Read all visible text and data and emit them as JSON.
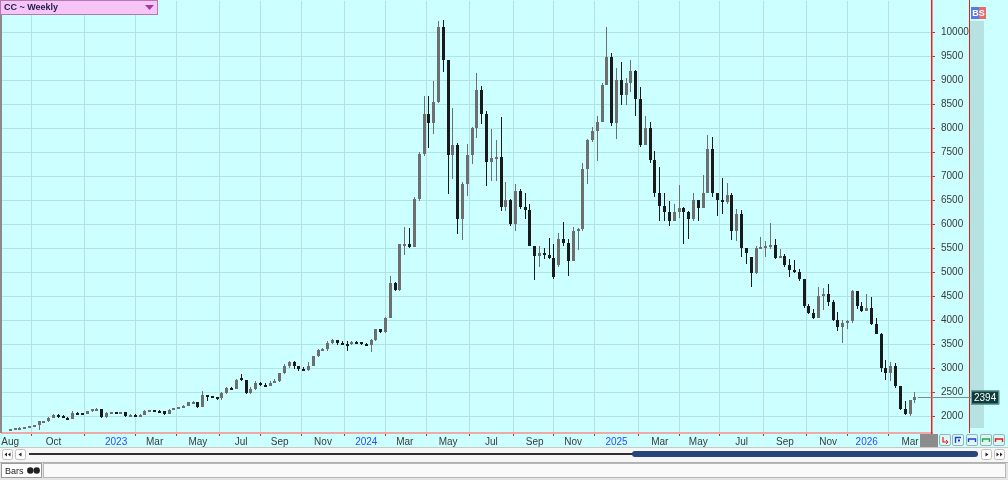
{
  "chart_data": {
    "type": "candlestick",
    "title": "CC ~ Weekly",
    "x": [
      "2022-08-05",
      "2022-08-12",
      "2022-08-19",
      "2022-08-26",
      "2022-09-02",
      "2022-09-09",
      "2022-09-16",
      "2022-09-23",
      "2022-09-30",
      "2022-10-07",
      "2022-10-14",
      "2022-10-21",
      "2022-10-28",
      "2022-11-04",
      "2022-11-11",
      "2022-11-18",
      "2022-11-25",
      "2022-12-02",
      "2022-12-09",
      "2022-12-16",
      "2022-12-23",
      "2022-12-30",
      "2023-01-06",
      "2023-01-13",
      "2023-01-20",
      "2023-01-27",
      "2023-02-03",
      "2023-02-10",
      "2023-02-17",
      "2023-02-24",
      "2023-03-03",
      "2023-03-10",
      "2023-03-17",
      "2023-03-24",
      "2023-03-31",
      "2023-04-07",
      "2023-04-14",
      "2023-04-21",
      "2023-04-28",
      "2023-05-05",
      "2023-05-12",
      "2023-05-19",
      "2023-05-26",
      "2023-06-02",
      "2023-06-09",
      "2023-06-16",
      "2023-06-23",
      "2023-06-30",
      "2023-07-07",
      "2023-07-14",
      "2023-07-21",
      "2023-07-28",
      "2023-08-04",
      "2023-08-11",
      "2023-08-18",
      "2023-08-25",
      "2023-09-01",
      "2023-09-08",
      "2023-09-15",
      "2023-09-22",
      "2023-09-29",
      "2023-10-06",
      "2023-10-13",
      "2023-10-20",
      "2023-10-27",
      "2023-11-03",
      "2023-11-10",
      "2023-11-17",
      "2023-11-24",
      "2023-12-01",
      "2023-12-08",
      "2023-12-15",
      "2023-12-22",
      "2023-12-29",
      "2024-01-05",
      "2024-01-12",
      "2024-01-19",
      "2024-01-26",
      "2024-02-02",
      "2024-02-09",
      "2024-02-16",
      "2024-02-23",
      "2024-03-01",
      "2024-03-08",
      "2024-03-15",
      "2024-03-22",
      "2024-03-29",
      "2024-04-05",
      "2024-04-12",
      "2024-04-19",
      "2024-04-26",
      "2024-05-03",
      "2024-05-10",
      "2024-05-17",
      "2024-05-24",
      "2024-05-31",
      "2024-06-07",
      "2024-06-14",
      "2024-06-21",
      "2024-06-28",
      "2024-07-05",
      "2024-07-12",
      "2024-07-19",
      "2024-07-26",
      "2024-08-02",
      "2024-08-09",
      "2024-08-16",
      "2024-08-23",
      "2024-08-30",
      "2024-09-06",
      "2024-09-13",
      "2024-09-20",
      "2024-09-27",
      "2024-10-04",
      "2024-10-11",
      "2024-10-18",
      "2024-10-25",
      "2024-11-01",
      "2024-11-08",
      "2024-11-15",
      "2024-11-22",
      "2024-11-29",
      "2024-12-06",
      "2024-12-13",
      "2024-12-20",
      "2024-12-27",
      "2025-01-03",
      "2025-01-10",
      "2025-01-17",
      "2025-01-24",
      "2025-01-31",
      "2025-02-07",
      "2025-02-14",
      "2025-02-21",
      "2025-02-28",
      "2025-03-07",
      "2025-03-14",
      "2025-03-21",
      "2025-03-28",
      "2025-04-04",
      "2025-04-11",
      "2025-04-18",
      "2025-04-25",
      "2025-05-02",
      "2025-05-09",
      "2025-05-16",
      "2025-05-23",
      "2025-05-30",
      "2025-06-06",
      "2025-06-13",
      "2025-06-20",
      "2025-06-27",
      "2025-07-04",
      "2025-07-11",
      "2025-07-18",
      "2025-07-25",
      "2025-08-01",
      "2025-08-08",
      "2025-08-15",
      "2025-08-22",
      "2025-08-29",
      "2025-09-05",
      "2025-09-12",
      "2025-09-19",
      "2025-09-26",
      "2025-10-03",
      "2025-10-10",
      "2025-10-17",
      "2025-10-24",
      "2025-10-31",
      "2025-11-07",
      "2025-11-14",
      "2025-11-21",
      "2025-11-28",
      "2025-12-05",
      "2025-12-12",
      "2025-12-19",
      "2025-12-26",
      "2026-01-02",
      "2026-01-09",
      "2026-01-16",
      "2026-01-23",
      "2026-01-30",
      "2026-02-06",
      "2026-02-13",
      "2026-02-20",
      "2026-02-27",
      "2026-03-06",
      "2026-03-13"
    ],
    "ohlc": [
      [
        1715,
        1740,
        1705,
        1725
      ],
      [
        1725,
        1755,
        1720,
        1745
      ],
      [
        1745,
        1765,
        1735,
        1755
      ],
      [
        1755,
        1775,
        1745,
        1765
      ],
      [
        1765,
        1800,
        1760,
        1790
      ],
      [
        1790,
        1825,
        1780,
        1815
      ],
      [
        1815,
        1905,
        1720,
        1890
      ],
      [
        1890,
        1910,
        1870,
        1895
      ],
      [
        1895,
        1975,
        1885,
        1960
      ],
      [
        1960,
        2040,
        1955,
        2030
      ],
      [
        2030,
        2040,
        1960,
        2010
      ],
      [
        2010,
        2015,
        1960,
        1970
      ],
      [
        1970,
        1980,
        1930,
        1940
      ],
      [
        1940,
        2100,
        1935,
        2070
      ],
      [
        2070,
        2085,
        2040,
        2060
      ],
      [
        2060,
        2075,
        2030,
        2045
      ],
      [
        2045,
        2110,
        2040,
        2100
      ],
      [
        2100,
        2160,
        2095,
        2150
      ],
      [
        2150,
        2170,
        2120,
        2155
      ],
      [
        2155,
        2160,
        1955,
        1975
      ],
      [
        1975,
        2085,
        1965,
        2070
      ],
      [
        2070,
        2090,
        2060,
        2080
      ],
      [
        2080,
        2085,
        2055,
        2070
      ],
      [
        2070,
        2095,
        2060,
        2085
      ],
      [
        2085,
        2090,
        1985,
        1995
      ],
      [
        1995,
        2050,
        1990,
        2035
      ],
      [
        2035,
        2045,
        1990,
        2015
      ],
      [
        2015,
        2045,
        2010,
        2035
      ],
      [
        2035,
        2135,
        2030,
        2115
      ],
      [
        2115,
        2135,
        2100,
        2120
      ],
      [
        2120,
        2130,
        2095,
        2115
      ],
      [
        2115,
        2125,
        2080,
        2105
      ],
      [
        2105,
        2110,
        2020,
        2050
      ],
      [
        2050,
        2145,
        2045,
        2135
      ],
      [
        2135,
        2175,
        2130,
        2165
      ],
      [
        2165,
        2200,
        2150,
        2190
      ],
      [
        2190,
        2225,
        2180,
        2215
      ],
      [
        2215,
        2305,
        2210,
        2290
      ],
      [
        2290,
        2310,
        2260,
        2295
      ],
      [
        2295,
        2300,
        2170,
        2200
      ],
      [
        2200,
        2515,
        2195,
        2440
      ],
      [
        2440,
        2450,
        2320,
        2420
      ],
      [
        2420,
        2430,
        2370,
        2390
      ],
      [
        2390,
        2400,
        2340,
        2370
      ],
      [
        2370,
        2510,
        2340,
        2480
      ],
      [
        2480,
        2600,
        2470,
        2590
      ],
      [
        2590,
        2610,
        2540,
        2560
      ],
      [
        2560,
        2770,
        2560,
        2760
      ],
      [
        2800,
        2880,
        2730,
        2760
      ],
      [
        2760,
        2760,
        2460,
        2480
      ],
      [
        2480,
        2600,
        2470,
        2560
      ],
      [
        2560,
        2730,
        2550,
        2700
      ],
      [
        2700,
        2720,
        2620,
        2650
      ],
      [
        2650,
        2700,
        2610,
        2630
      ],
      [
        2630,
        2740,
        2620,
        2700
      ],
      [
        2700,
        2770,
        2690,
        2730
      ],
      [
        2730,
        2910,
        2720,
        2900
      ],
      [
        2900,
        3080,
        2880,
        3050
      ],
      [
        3050,
        3150,
        3010,
        3120
      ],
      [
        3120,
        3140,
        2980,
        3050
      ],
      [
        3050,
        3050,
        2940,
        2980
      ],
      [
        2980,
        3020,
        2940,
        2960
      ],
      [
        2960,
        3120,
        2950,
        3050
      ],
      [
        3050,
        3260,
        3040,
        3250
      ],
      [
        3250,
        3400,
        3240,
        3380
      ],
      [
        3380,
        3430,
        3360,
        3400
      ],
      [
        3400,
        3560,
        3360,
        3530
      ],
      [
        3530,
        3610,
        3500,
        3580
      ],
      [
        3580,
        3590,
        3480,
        3530
      ],
      [
        3530,
        3560,
        3490,
        3510
      ],
      [
        3510,
        3560,
        3350,
        3500
      ],
      [
        3500,
        3570,
        3490,
        3540
      ],
      [
        3540,
        3570,
        3500,
        3520
      ],
      [
        3540,
        3550,
        3480,
        3500
      ],
      [
        3500,
        3520,
        3460,
        3490
      ],
      [
        3490,
        3600,
        3330,
        3580
      ],
      [
        3580,
        3815,
        3570,
        3810
      ],
      [
        3810,
        3820,
        3740,
        3750
      ],
      [
        3750,
        4060,
        3740,
        4050
      ],
      [
        4050,
        4930,
        4040,
        4770
      ],
      [
        4770,
        4790,
        4610,
        4620
      ],
      [
        4620,
        5590,
        4610,
        5580
      ],
      [
        5580,
        5940,
        5360,
        5590
      ],
      [
        5590,
        5920,
        5500,
        5520
      ],
      [
        5520,
        6560,
        5520,
        6520
      ],
      [
        6520,
        7500,
        6480,
        7470
      ],
      [
        7470,
        8670,
        7420,
        8290
      ],
      [
        8290,
        8670,
        7580,
        8100
      ],
      [
        8100,
        8990,
        7870,
        8540
      ],
      [
        8540,
        10235,
        8535,
        10100
      ],
      [
        10100,
        10250,
        9180,
        9420
      ],
      [
        9420,
        9420,
        6630,
        7450
      ],
      [
        7450,
        8430,
        6940,
        7650
      ],
      [
        7650,
        7700,
        5790,
        6100
      ],
      [
        6100,
        6870,
        5670,
        6830
      ],
      [
        6830,
        7680,
        6590,
        7450
      ],
      [
        7450,
        8015,
        7250,
        8000
      ],
      [
        8000,
        9140,
        7800,
        8800
      ],
      [
        8800,
        8880,
        8080,
        8300
      ],
      [
        8300,
        8360,
        6800,
        7300
      ],
      [
        7300,
        7980,
        6900,
        7380
      ],
      [
        7380,
        7750,
        6900,
        7400
      ],
      [
        7400,
        8240,
        6280,
        6350
      ],
      [
        6350,
        6870,
        6280,
        6500
      ],
      [
        6500,
        6520,
        5970,
        6000
      ],
      [
        6000,
        6830,
        5860,
        6700
      ],
      [
        6700,
        6730,
        6310,
        6350
      ],
      [
        6350,
        6640,
        6110,
        6300
      ],
      [
        6300,
        6420,
        5550,
        5550
      ],
      [
        5550,
        5550,
        4840,
        5330
      ],
      [
        5330,
        5550,
        5110,
        5400
      ],
      [
        5400,
        5500,
        5270,
        5350
      ],
      [
        5350,
        5720,
        5270,
        5300
      ],
      [
        5300,
        5590,
        4860,
        4900
      ],
      [
        5150,
        5810,
        5100,
        5700
      ],
      [
        5700,
        6050,
        5550,
        5600
      ],
      [
        5600,
        5690,
        4925,
        5230
      ],
      [
        5230,
        5950,
        5230,
        5850
      ],
      [
        5850,
        5930,
        5460,
        5900
      ],
      [
        5900,
        7265,
        5860,
        7150
      ],
      [
        7150,
        7770,
        6830,
        7750
      ],
      [
        7750,
        8015,
        7720,
        7950
      ],
      [
        7950,
        8260,
        7320,
        8130
      ],
      [
        8130,
        8950,
        8130,
        8900
      ],
      [
        8900,
        10100,
        8900,
        9490
      ],
      [
        9490,
        9560,
        8050,
        8100
      ],
      [
        8100,
        9260,
        7785,
        9000
      ],
      [
        9000,
        9370,
        8480,
        8700
      ],
      [
        8700,
        9055,
        8490,
        8950
      ],
      [
        8950,
        9420,
        8760,
        9200
      ],
      [
        9200,
        9210,
        8260,
        8600
      ],
      [
        8600,
        8860,
        7600,
        7650
      ],
      [
        7650,
        8260,
        7650,
        8000
      ],
      [
        8000,
        8120,
        7285,
        7340
      ],
      [
        7340,
        7530,
        6570,
        6660
      ],
      [
        6660,
        7195,
        6060,
        6380
      ],
      [
        6380,
        6660,
        6060,
        6250
      ],
      [
        6250,
        6490,
        5970,
        6060
      ],
      [
        6060,
        6430,
        6060,
        6250
      ],
      [
        6250,
        6820,
        6130,
        6330
      ],
      [
        6330,
        6350,
        5590,
        6250
      ],
      [
        6250,
        6280,
        5690,
        6110
      ],
      [
        6110,
        6660,
        6060,
        6500
      ],
      [
        6500,
        6500,
        6060,
        6340
      ],
      [
        6340,
        7030,
        6335,
        6660
      ],
      [
        6660,
        7860,
        6660,
        7570
      ],
      [
        7570,
        7820,
        6560,
        6650
      ],
      [
        6650,
        6660,
        6175,
        6500
      ],
      [
        6500,
        6960,
        6210,
        6470
      ],
      [
        6470,
        6850,
        6420,
        6600
      ],
      [
        6600,
        6660,
        5670,
        5850
      ],
      [
        5850,
        6310,
        5650,
        6210
      ],
      [
        6210,
        6290,
        5310,
        5500
      ],
      [
        5500,
        5500,
        5170,
        5400
      ],
      [
        5320,
        5320,
        4700,
        4980
      ],
      [
        4980,
        5540,
        4970,
        5500
      ],
      [
        5500,
        5740,
        5500,
        5520
      ],
      [
        5520,
        5650,
        5310,
        5550
      ],
      [
        5550,
        6015,
        5480,
        5560
      ],
      [
        5560,
        5690,
        5270,
        5300
      ],
      [
        5300,
        5480,
        5300,
        5330
      ],
      [
        5330,
        5370,
        5100,
        5150
      ],
      [
        5150,
        5270,
        4890,
        5050
      ],
      [
        5050,
        5250,
        4990,
        5000
      ],
      [
        5000,
        5060,
        4820,
        4850
      ],
      [
        4850,
        4855,
        4250,
        4300
      ],
      [
        4300,
        4330,
        4125,
        4150
      ],
      [
        4150,
        4230,
        4020,
        4050
      ],
      [
        4050,
        4690,
        4040,
        4500
      ],
      [
        4500,
        4680,
        4210,
        4550
      ],
      [
        4550,
        4760,
        4300,
        4380
      ],
      [
        4380,
        4420,
        3990,
        4000
      ],
      [
        4000,
        4180,
        3765,
        3850
      ],
      [
        3850,
        4000,
        3515,
        3950
      ],
      [
        3950,
        4000,
        3810,
        3980
      ],
      [
        3980,
        4625,
        3950,
        4600
      ],
      [
        4600,
        4600,
        4230,
        4300
      ],
      [
        4300,
        4370,
        4180,
        4200
      ],
      [
        4200,
        4555,
        4200,
        4250
      ],
      [
        4250,
        4490,
        3900,
        3920
      ],
      [
        3920,
        4040,
        3720,
        3720
      ],
      [
        3720,
        3740,
        2930,
        3000
      ],
      [
        3000,
        3170,
        2750,
        2900
      ],
      [
        2900,
        3120,
        2740,
        3050
      ],
      [
        3050,
        3100,
        2585,
        2620
      ],
      [
        2620,
        2620,
        2125,
        2150
      ],
      [
        2150,
        2320,
        2030,
        2050
      ],
      [
        2050,
        2335,
        2010,
        2330
      ],
      [
        2330,
        2495,
        2285,
        2394
      ]
    ],
    "colors": [
      "#6e6e6e",
      "#6e6e6e",
      "#6e6e6e",
      "#6e6e6e",
      "#6e6e6e",
      "#6e6e6e",
      "#6e6e6e",
      "#6e6e6e",
      "#6e6e6e",
      "#6e6e6e",
      "#1a1a1a",
      "#1a1a1a",
      "#1a1a1a",
      "#6e6e6e",
      "#1a1a1a",
      "#1a1a1a",
      "#6e6e6e",
      "#6e6e6e",
      "#6e6e6e",
      "#1a1a1a",
      "#6e6e6e",
      "#6e6e6e",
      "#1a1a1a",
      "#6e6e6e",
      "#1a1a1a",
      "#6e6e6e",
      "#1a1a1a",
      "#6e6e6e",
      "#6e6e6e",
      "#6e6e6e",
      "#1a1a1a",
      "#1a1a1a",
      "#1a1a1a",
      "#6e6e6e",
      "#6e6e6e",
      "#6e6e6e",
      "#6e6e6e",
      "#6e6e6e",
      "#6e6e6e",
      "#1a1a1a",
      "#6e6e6e",
      "#1a1a1a",
      "#1a1a1a",
      "#1a1a1a",
      "#6e6e6e",
      "#6e6e6e",
      "#1a1a1a",
      "#6e6e6e",
      "#1a1a1a",
      "#1a1a1a",
      "#6e6e6e",
      "#6e6e6e",
      "#1a1a1a",
      "#1a1a1a",
      "#6e6e6e",
      "#6e6e6e",
      "#6e6e6e",
      "#6e6e6e",
      "#6e6e6e",
      "#1a1a1a",
      "#1a1a1a",
      "#1a1a1a",
      "#6e6e6e",
      "#6e6e6e",
      "#6e6e6e",
      "#6e6e6e",
      "#6e6e6e",
      "#6e6e6e",
      "#1a1a1a",
      "#1a1a1a",
      "#1a1a1a",
      "#6e6e6e",
      "#1a1a1a",
      "#1a1a1a",
      "#1a1a1a",
      "#6e6e6e",
      "#6e6e6e",
      "#1a1a1a",
      "#6e6e6e",
      "#6e6e6e",
      "#1a1a1a",
      "#6e6e6e",
      "#6e6e6e",
      "#1a1a1a",
      "#6e6e6e",
      "#6e6e6e",
      "#6e6e6e",
      "#1a1a1a",
      "#6e6e6e",
      "#6e6e6e",
      "#1a1a1a",
      "#1a1a1a",
      "#6e6e6e",
      "#1a1a1a",
      "#6e6e6e",
      "#6e6e6e",
      "#6e6e6e",
      "#6e6e6e",
      "#1a1a1a",
      "#1a1a1a",
      "#6e6e6e",
      "#6e6e6e",
      "#1a1a1a",
      "#6e6e6e",
      "#1a1a1a",
      "#6e6e6e",
      "#1a1a1a",
      "#1a1a1a",
      "#1a1a1a",
      "#1a1a1a",
      "#6e6e6e",
      "#1a1a1a",
      "#1a1a1a",
      "#1a1a1a",
      "#6e6e6e",
      "#1a1a1a",
      "#1a1a1a",
      "#6e6e6e",
      "#6e6e6e",
      "#6e6e6e",
      "#6e6e6e",
      "#6e6e6e",
      "#6e6e6e",
      "#6e6e6e",
      "#6e6e6e",
      "#1a1a1a",
      "#6e6e6e",
      "#1a1a1a",
      "#6e6e6e",
      "#6e6e6e",
      "#1a1a1a",
      "#1a1a1a",
      "#6e6e6e",
      "#1a1a1a",
      "#1a1a1a",
      "#1a1a1a",
      "#1a1a1a",
      "#1a1a1a",
      "#6e6e6e",
      "#6e6e6e",
      "#1a1a1a",
      "#1a1a1a",
      "#6e6e6e",
      "#1a1a1a",
      "#6e6e6e",
      "#6e6e6e",
      "#1a1a1a",
      "#1a1a1a",
      "#1a1a1a",
      "#6e6e6e",
      "#1a1a1a",
      "#6e6e6e",
      "#1a1a1a",
      "#1a1a1a",
      "#1a1a1a",
      "#6e6e6e",
      "#6e6e6e",
      "#6e6e6e",
      "#6e6e6e",
      "#1a1a1a",
      "#6e6e6e",
      "#1a1a1a",
      "#1a1a1a",
      "#1a1a1a",
      "#1a1a1a",
      "#1a1a1a",
      "#1a1a1a",
      "#1a1a1a",
      "#6e6e6e",
      "#6e6e6e",
      "#1a1a1a",
      "#1a1a1a",
      "#1a1a1a",
      "#6e6e6e",
      "#6e6e6e",
      "#6e6e6e",
      "#1a1a1a",
      "#1a1a1a",
      "#6e6e6e",
      "#1a1a1a",
      "#1a1a1a",
      "#1a1a1a",
      "#1a1a1a",
      "#6e6e6e",
      "#1a1a1a",
      "#1a1a1a",
      "#1a1a1a",
      "#6e6e6e",
      "#6e6e6e"
    ],
    "xlim": [
      "2022-07-24",
      "2026-04-07"
    ],
    "xticks": [
      {
        "value": "2022-08-05",
        "label": "Aug"
      },
      {
        "value": "2022-10-07",
        "label": "Oct"
      },
      {
        "value": "2023-01-06",
        "label": "2023"
      },
      {
        "value": "2023-03-03",
        "label": "Mar"
      },
      {
        "value": "2023-05-05",
        "label": "May"
      },
      {
        "value": "2023-07-07",
        "label": "Jul"
      },
      {
        "value": "2023-09-01",
        "label": "Sep"
      },
      {
        "value": "2023-11-03",
        "label": "Nov"
      },
      {
        "value": "2024-01-05",
        "label": "2024"
      },
      {
        "value": "2024-03-01",
        "label": "Mar"
      },
      {
        "value": "2024-05-03",
        "label": "May"
      },
      {
        "value": "2024-07-05",
        "label": "Jul"
      },
      {
        "value": "2024-09-06",
        "label": "Sep"
      },
      {
        "value": "2024-11-01",
        "label": "Nov"
      },
      {
        "value": "2025-01-03",
        "label": "2025"
      },
      {
        "value": "2025-03-07",
        "label": "Mar"
      },
      {
        "value": "2025-05-02",
        "label": "May"
      },
      {
        "value": "2025-07-04",
        "label": "Jul"
      },
      {
        "value": "2025-09-05",
        "label": "Sep"
      },
      {
        "value": "2025-11-07",
        "label": "Nov"
      },
      {
        "value": "2026-01-02",
        "label": "2026"
      },
      {
        "value": "2026-03-06",
        "label": "Mar"
      }
    ],
    "ylim": [
      1650,
      10650
    ],
    "yticks": [
      2000,
      2500,
      3000,
      3500,
      4000,
      4500,
      5000,
      5500,
      6000,
      6500,
      7000,
      7500,
      8000,
      8500,
      9000,
      9500,
      10000
    ],
    "grid": true,
    "annotations": [
      {
        "text": "2394",
        "x": "2026-03-13",
        "y": 2394
      },
      "BS",
      "Bars"
    ]
  }
}
